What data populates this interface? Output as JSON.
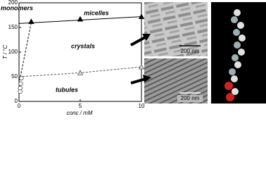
{
  "chart_data": {
    "type": "line",
    "xlabel": "conc / mM",
    "ylabel": "T / °C",
    "xlim": [
      0,
      10
    ],
    "xticks": [
      0,
      5,
      10
    ],
    "ylim": [
      0,
      200
    ],
    "yticks": [
      0,
      50,
      100,
      150,
      200
    ],
    "annotations": [
      "monomers",
      "micelles",
      "crystals",
      "tubules"
    ],
    "series": [
      {
        "color": "#000000",
        "dash": false,
        "marker": "none",
        "x": [
          0,
          10
        ],
        "values": [
          158,
          172
        ]
      },
      {
        "color": "#000000",
        "dash": false,
        "marker": "filled-triangle",
        "x": [
          1,
          5,
          10
        ],
        "values": [
          162,
          167,
          172
        ]
      },
      {
        "color": "#000000",
        "dash": true,
        "marker": "none",
        "x": [
          0,
          1
        ],
        "values": [
          36,
          160
        ]
      },
      {
        "color": "#555555",
        "dash": true,
        "marker": "none",
        "x": [
          0,
          5,
          10
        ],
        "values": [
          50,
          58,
          70
        ]
      },
      {
        "color": "#555555",
        "dash": false,
        "marker": "open-triangle",
        "x": [
          5,
          10
        ],
        "values": [
          58,
          70
        ]
      },
      {
        "color": "#555555",
        "dash": false,
        "marker": "open-circle",
        "x": [
          0.1,
          0.1,
          0.15,
          0.2
        ],
        "values": [
          20,
          27,
          36,
          47
        ]
      }
    ]
  },
  "images": [
    {
      "scale_bar": "200 nm"
    },
    {
      "scale_bar": "200 nm"
    }
  ]
}
